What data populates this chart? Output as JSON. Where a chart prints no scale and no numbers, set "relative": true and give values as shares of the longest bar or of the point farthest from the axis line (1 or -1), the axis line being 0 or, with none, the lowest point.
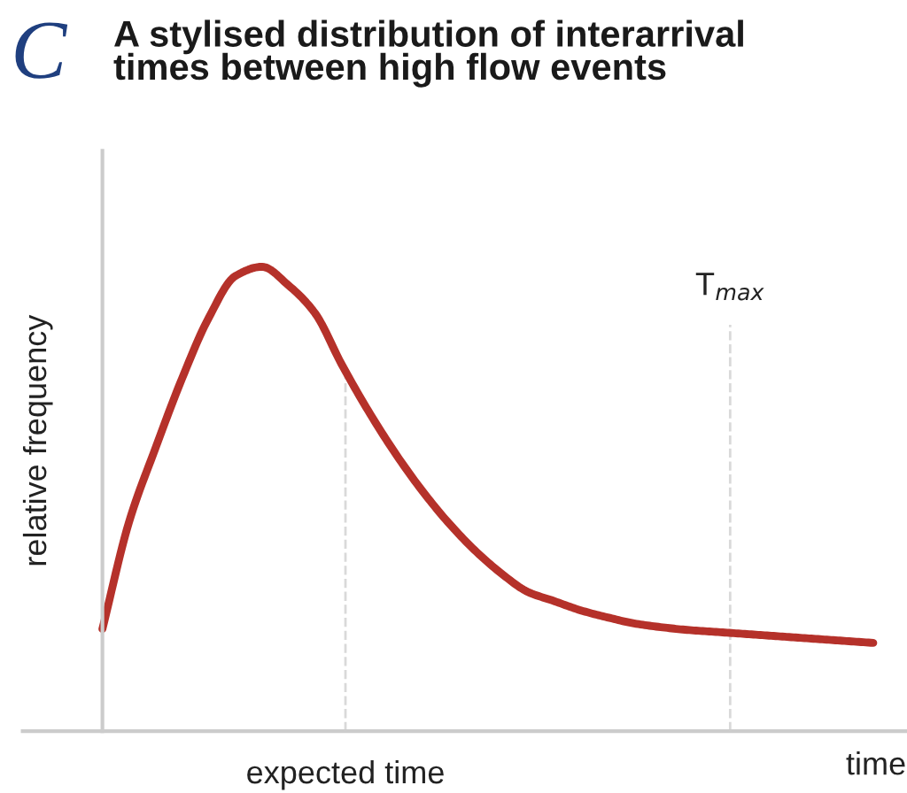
{
  "chart_data": {
    "type": "line",
    "title": "A stylised distribution of interarrival\ntimes between high flow events",
    "annotations": [
      "C",
      "expected time",
      "T$_{max}$"
    ],
    "xlabel": "time",
    "ylabel": "relative frequency",
    "relative": true,
    "categories": [
      null,
      null,
      null,
      null,
      null,
      null,
      null,
      null,
      null,
      null,
      null,
      null,
      null,
      null,
      null,
      null,
      null,
      null,
      null,
      null,
      null,
      null,
      null,
      null,
      null,
      null,
      null,
      null,
      null,
      null
    ],
    "series": [
      {
        "color": "#b5312a",
        "values": [
          0.22,
          0.45,
          0.61,
          0.76,
          0.89,
          0.98,
          1.0,
          0.96,
          0.9,
          0.79,
          0.69,
          0.6,
          0.52,
          0.45,
          0.39,
          0.34,
          0.3,
          0.28,
          0.26,
          0.245,
          0.232,
          0.224,
          0.218,
          0.214,
          0.21,
          0.206,
          0.202,
          0.198,
          0.194,
          0.19
        ]
      }
    ],
    "legend": false,
    "marker": "none",
    "line_style": "solid"
  }
}
